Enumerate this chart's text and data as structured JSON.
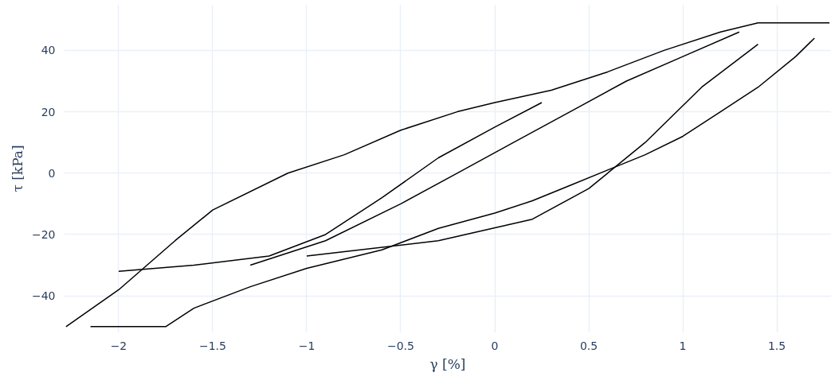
{
  "chart_data": {
    "type": "line",
    "xlabel": "γ [%]",
    "ylabel": "τ [kPa]",
    "xlim": [
      -2.29,
      1.79
    ],
    "ylim": [
      -52,
      55
    ],
    "xticks": [
      -2,
      -1.5,
      -1,
      -0.5,
      0,
      0.5,
      1,
      1.5
    ],
    "yticks": [
      -40,
      -20,
      0,
      20,
      40
    ],
    "grid": true,
    "marker": "none",
    "line_style": "solid",
    "series": [
      {
        "color": "#000000",
        "x": [
          -2.28,
          -2.0,
          -1.7,
          -1.5,
          -1.1,
          -0.8,
          -0.5,
          -0.2,
          0,
          0.3,
          0.6,
          0.9,
          1.2,
          1.4,
          1.78
        ],
        "values": [
          -50,
          -38,
          -22,
          -12,
          0,
          6,
          14,
          20,
          23,
          27,
          33,
          40,
          46,
          49,
          49
        ]
      },
      {
        "color": "#000000",
        "x": [
          -2.15,
          -1.75,
          -1.6,
          -1.3,
          -1.0,
          -0.6,
          -0.3,
          0,
          0.2,
          0.4,
          0.6,
          0.8,
          1.0,
          1.2,
          1.4,
          1.6,
          1.7
        ],
        "values": [
          -50,
          -50,
          -44,
          -37,
          -31,
          -25,
          -18,
          -13,
          -9,
          -4,
          1,
          6,
          12,
          20,
          28,
          38,
          44
        ]
      },
      {
        "color": "#000000",
        "x": [
          -1.3,
          -0.9,
          -0.5,
          -0.2,
          0.1,
          0.4,
          0.7,
          1.0,
          1.3
        ],
        "values": [
          -30,
          -22,
          -10,
          0,
          10,
          20,
          30,
          38,
          46
        ]
      },
      {
        "color": "#000000",
        "x": [
          -2.0,
          -1.6,
          -1.2,
          -0.9,
          -0.6,
          -0.3,
          0.0,
          0.25
        ],
        "values": [
          -32,
          -30,
          -27,
          -20,
          -8,
          5,
          15,
          23
        ]
      },
      {
        "color": "#000000",
        "x": [
          -1.0,
          -0.3,
          0.2,
          0.5,
          0.8,
          1.1,
          1.4
        ],
        "values": [
          -27,
          -22,
          -15,
          -5,
          10,
          28,
          42
        ]
      }
    ]
  }
}
